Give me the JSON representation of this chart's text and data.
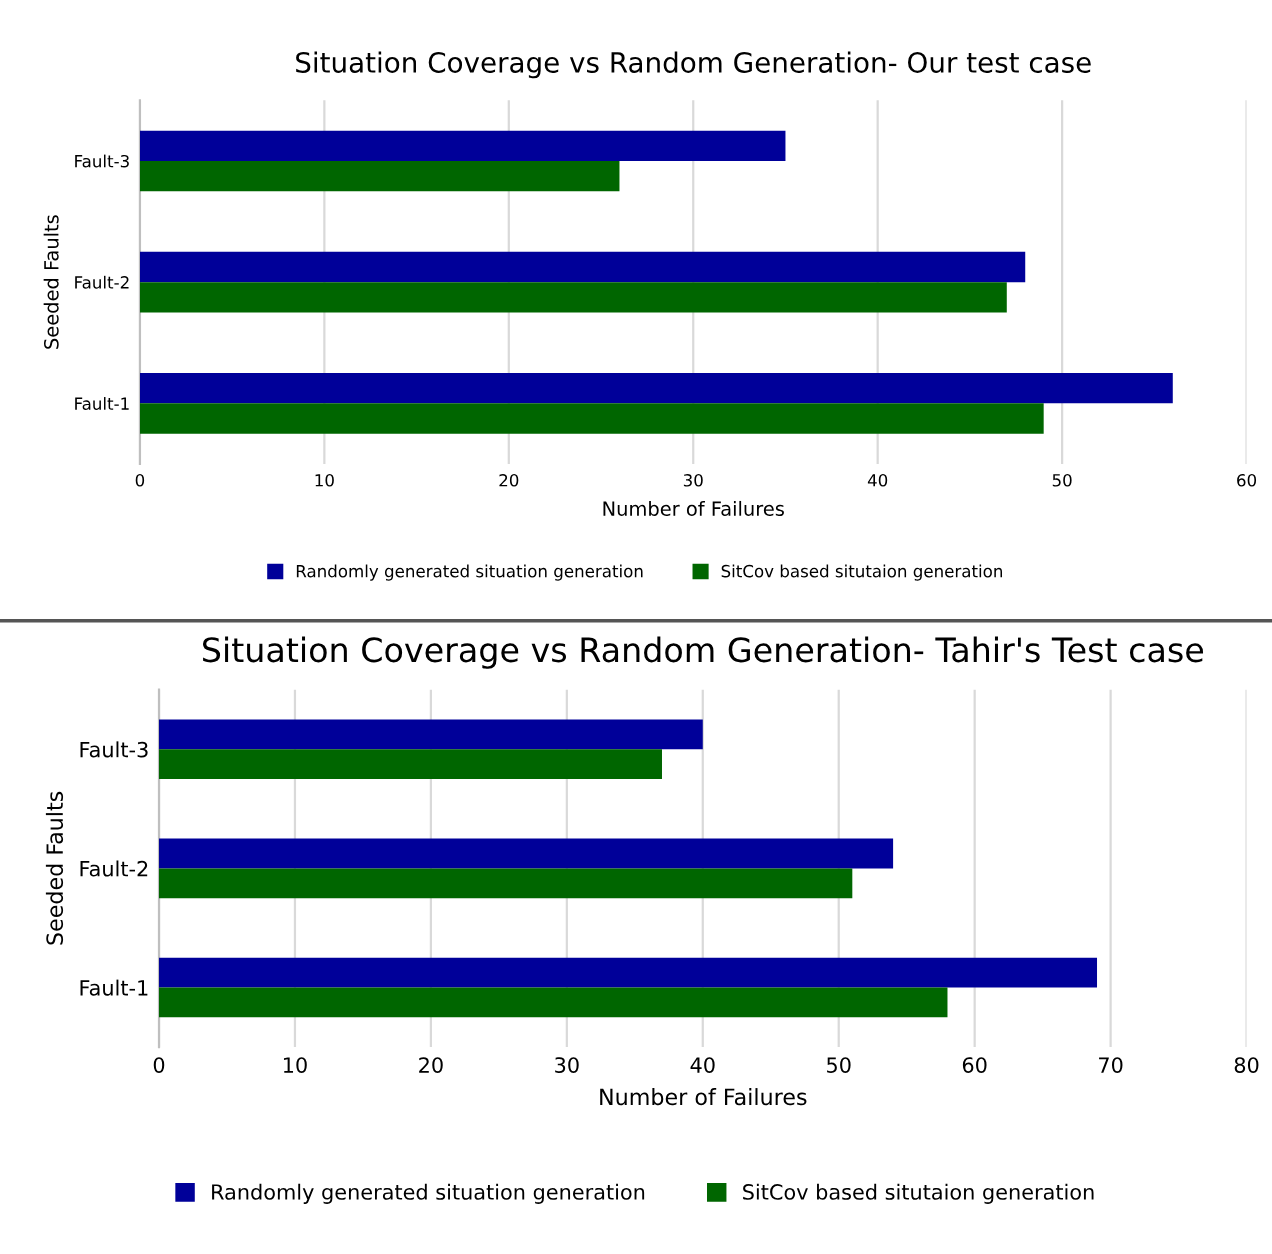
{
  "chart_data": [
    {
      "type": "bar",
      "orientation": "horizontal",
      "title": "Situation Coverage vs Random Generation- Our test case",
      "xlabel": "Number of Failures",
      "ylabel": "Seeded Faults",
      "categories": [
        "Fault-3",
        "Fault-2",
        "Fault-1"
      ],
      "series": [
        {
          "name": "Randomly generated situation generation",
          "color": "#000099",
          "values": [
            35,
            48,
            56
          ]
        },
        {
          "name": "SitCov based situtaion generation",
          "color": "#006600",
          "values": [
            26,
            47,
            49
          ]
        }
      ],
      "xlim": [
        0,
        60
      ],
      "xticks": [
        0,
        10,
        20,
        30,
        40,
        50,
        60
      ],
      "grid": "x",
      "legend": "bottom"
    },
    {
      "type": "bar",
      "orientation": "horizontal",
      "title": "Situation Coverage vs Random Generation- Tahir's Test case",
      "xlabel": "Number of Failures",
      "ylabel": "Seeded Faults",
      "categories": [
        "Fault-3",
        "Fault-2",
        "Fault-1"
      ],
      "series": [
        {
          "name": "Randomly generated situation generation",
          "color": "#000099",
          "values": [
            40,
            54,
            69
          ]
        },
        {
          "name": "SitCov based situtaion generation",
          "color": "#006600",
          "values": [
            37,
            51,
            58
          ]
        }
      ],
      "xlim": [
        0,
        80
      ],
      "xticks": [
        0,
        10,
        20,
        30,
        40,
        50,
        60,
        70,
        80
      ],
      "grid": "x",
      "legend": "bottom"
    }
  ]
}
